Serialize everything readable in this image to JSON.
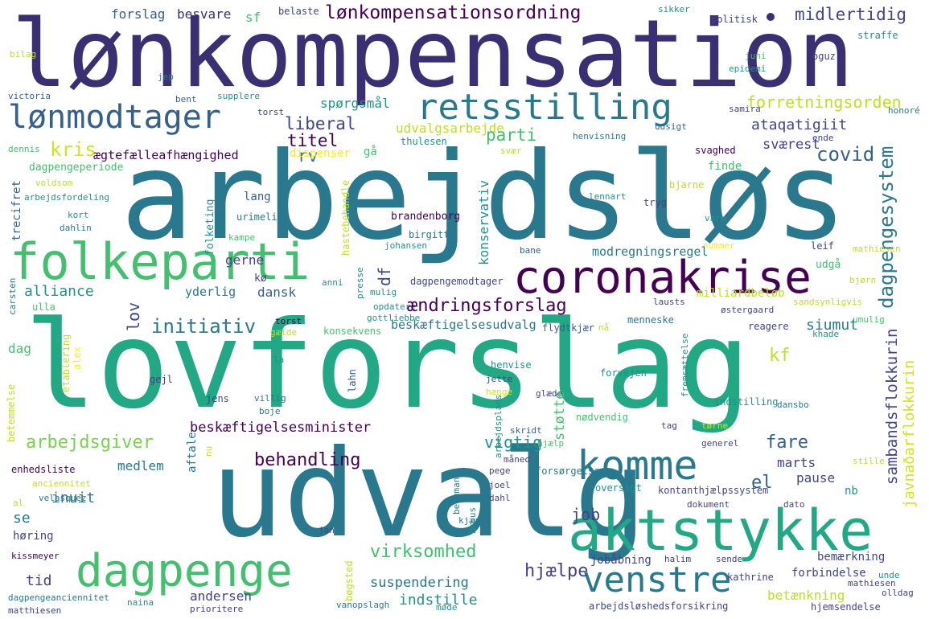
{
  "palette": {
    "dark_purple": "#440154",
    "indigo": "#3b2f73",
    "slate": "#414487",
    "blue": "#355f8d",
    "teal": "#2a788e",
    "cyan": "#21918c",
    "sea": "#22a884",
    "green": "#44bf70",
    "lime": "#7ad151",
    "yellow": "#bddf26",
    "gold": "#fde725",
    "pale": "#d2e21b"
  },
  "words": {
    "lonkompensation": {
      "text": "lønkompensation",
      "color": "#3b2f73"
    },
    "arbejdslos": {
      "text": "arbejdsløs",
      "color": "#2a788e"
    },
    "lovforslag": {
      "text": "lovforslag",
      "color": "#22a884"
    },
    "udvalg": {
      "text": "udvalg",
      "color": "#2a788e"
    },
    "aktstykke": {
      "text": "aktstykke",
      "color": "#22a884"
    },
    "folkeparti": {
      "text": "folkeparti",
      "color": "#44bf70"
    },
    "coronakrise": {
      "text": "coronakrise",
      "color": "#440154"
    },
    "retsstilling": {
      "text": "retsstilling",
      "color": "#2a788e"
    },
    "lonmodtager": {
      "text": "lønmodtager",
      "color": "#355f8d"
    },
    "dagpenge": {
      "text": "dagpenge",
      "color": "#44bf70"
    },
    "komme": {
      "text": "komme",
      "color": "#2a788e"
    },
    "venstre": {
      "text": "venstre",
      "color": "#2a788e"
    },
    "lonkompensationsordning": {
      "text": "lønkompensationsordning",
      "color": "#440154"
    },
    "midlertidig": {
      "text": "midlertidig",
      "color": "#414487"
    },
    "forretningsorden": {
      "text": "forretningsorden",
      "color": "#bddf26"
    },
    "ataqatigiit": {
      "text": "ataqatigiit",
      "color": "#414487"
    },
    "covid": {
      "text": "covid",
      "color": "#355f8d"
    },
    "dagpengesystem": {
      "text": "dagpengesystem",
      "color": "#2a788e"
    },
    "liberal": {
      "text": "liberal",
      "color": "#414487"
    },
    "udvalgsarbejde": {
      "text": "udvalgsarbejde",
      "color": "#bddf26"
    },
    "parti": {
      "text": "parti",
      "color": "#44bf70"
    },
    "kris": {
      "text": "kris",
      "color": "#d2e21b"
    },
    "titel": {
      "text": "titel",
      "color": "#440154"
    },
    "rv": {
      "text": "rv",
      "color": "#2a788e"
    },
    "svaerest": {
      "text": "sværest",
      "color": "#414487"
    },
    "aegtefaelle": {
      "text": "ægtefælleafhængighed",
      "color": "#440154"
    },
    "dispenser": {
      "text": "dispenser",
      "color": "#fde725"
    },
    "ga": {
      "text": "gå",
      "color": "#44bf70"
    },
    "thulesen": {
      "text": "thulesen",
      "color": "#21918c"
    },
    "svaer": {
      "text": "svær",
      "color": "#bddf26"
    },
    "svaghed": {
      "text": "svaghed",
      "color": "#440154"
    },
    "ende": {
      "text": "ende",
      "color": "#414487"
    },
    "spoergsmaal": {
      "text": "spørgsmål",
      "color": "#21918c"
    },
    "forslag": {
      "text": "forslag",
      "color": "#355f8d"
    },
    "besvare": {
      "text": "besvare",
      "color": "#3b2f73"
    },
    "sf": {
      "text": "sf",
      "color": "#44bf70"
    },
    "belaste": {
      "text": "belaste",
      "color": "#414487"
    },
    "sikker": {
      "text": "sikker",
      "color": "#21918c"
    },
    "politisk": {
      "text": "politisk",
      "color": "#414487"
    },
    "oguz": {
      "text": "oguz",
      "color": "#414487"
    },
    "straffe": {
      "text": "straffe",
      "color": "#21918c"
    },
    "bilag": {
      "text": "bilag",
      "color": "#bddf26"
    },
    "juni": {
      "text": "juni",
      "color": "#44bf70"
    },
    "jep": {
      "text": "jep",
      "color": "#2a788e"
    },
    "epidemi": {
      "text": "epidemi",
      "color": "#21918c"
    },
    "victoria": {
      "text": "victoria",
      "color": "#355f8d"
    },
    "bent": {
      "text": "bent",
      "color": "#355f8d"
    },
    "supplere": {
      "text": "supplere",
      "color": "#21918c"
    },
    "samira": {
      "text": "samira",
      "color": "#414487"
    },
    "honore": {
      "text": "honoré",
      "color": "#2a788e"
    },
    "torst": {
      "text": "torst",
      "color": "#414487"
    },
    "udsigt": {
      "text": "udsigt",
      "color": "#355f8d"
    },
    "henvisning": {
      "text": "henvisning",
      "color": "#2a788e"
    },
    "dennis": {
      "text": "dennis",
      "color": "#44bf70"
    },
    "dagpengeperiode": {
      "text": "dagpengeperiode",
      "color": "#44bf70"
    },
    "voldsom": {
      "text": "voldsom",
      "color": "#bddf26"
    },
    "arbejdsfordeling": {
      "text": "arbejdsfordeling",
      "color": "#21918c"
    },
    "kort": {
      "text": "kort",
      "color": "#21918c"
    },
    "dahlin": {
      "text": "dahlin",
      "color": "#2a788e"
    },
    "trecifret": {
      "text": "trecifret",
      "color": "#355f8d"
    },
    "folketing": {
      "text": "folketing",
      "color": "#21918c"
    },
    "lang": {
      "text": "lang",
      "color": "#355f8d"
    },
    "urimelig": {
      "text": "urimelig",
      "color": "#2a788e"
    },
    "brandenborg": {
      "text": "brandenborg",
      "color": "#440154"
    },
    "birgitte": {
      "text": "birgitte",
      "color": "#2a788e"
    },
    "kampe": {
      "text": "kampe",
      "color": "#44bf70"
    },
    "hastebehandle": {
      "text": "hastebehandle",
      "color": "#bddf26"
    },
    "lennart": {
      "text": "lennart",
      "color": "#21918c"
    },
    "tryg": {
      "text": "tryg",
      "color": "#414487"
    },
    "varm": {
      "text": "varm",
      "color": "#21918c"
    },
    "bjarne": {
      "text": "bjarne",
      "color": "#bddf26"
    },
    "finde": {
      "text": "finde",
      "color": "#44bf70"
    },
    "konservativ": {
      "text": "konservativ",
      "color": "#21918c"
    },
    "nummer": {
      "text": "nummer",
      "color": "#fde725"
    },
    "leif": {
      "text": "leif",
      "color": "#414487"
    },
    "mathiesen_top": {
      "text": "mathiesen",
      "color": "#bddf26"
    },
    "johansen": {
      "text": "johansen",
      "color": "#21918c"
    },
    "bane": {
      "text": "bane",
      "color": "#355f8d"
    },
    "modregningsregel": {
      "text": "modregningsregel",
      "color": "#2a788e"
    },
    "udga": {
      "text": "udgå",
      "color": "#44bf70"
    },
    "bjorn": {
      "text": "bjørn",
      "color": "#bddf26"
    },
    "gerne": {
      "text": "gerne",
      "color": "#414487"
    },
    "df": {
      "text": "df",
      "color": "#414487"
    },
    "alliance": {
      "text": "alliance",
      "color": "#21918c"
    },
    "yderlig": {
      "text": "yderlig",
      "color": "#2a788e"
    },
    "ko": {
      "text": "kø",
      "color": "#414487"
    },
    "dansk": {
      "text": "dansk",
      "color": "#355f8d"
    },
    "anni": {
      "text": "anni",
      "color": "#21918c"
    },
    "presse": {
      "text": "presse",
      "color": "#21918c"
    },
    "mulig": {
      "text": "mulig",
      "color": "#21918c"
    },
    "dagpengemodtager": {
      "text": "dagpengemodtager",
      "color": "#414487"
    },
    "opdatere": {
      "text": "opdatere",
      "color": "#21918c"
    },
    "lausts": {
      "text": "lausts",
      "color": "#414487"
    },
    "milliardbelob": {
      "text": "milliardbeløb",
      "color": "#bddf26"
    },
    "sandsynligvis": {
      "text": "sandsynligvis",
      "color": "#bddf26"
    },
    "ostergaard": {
      "text": "østergaard",
      "color": "#414487"
    },
    "carsten": {
      "text": "carsten",
      "color": "#2a788e"
    },
    "ulla": {
      "text": "ulla",
      "color": "#44bf70"
    },
    "lov": {
      "text": "lov",
      "color": "#414487"
    },
    "aendringsforslag": {
      "text": "ændringsforslag",
      "color": "#440154"
    },
    "initiativ": {
      "text": "initiativ",
      "color": "#2a788e"
    },
    "torst2": {
      "text": "torst",
      "color": "#440154"
    },
    "gottliebbe": {
      "text": "gottliebbe",
      "color": "#21918c"
    },
    "galde": {
      "text": "gælde",
      "color": "#bddf26"
    },
    "konsekvens": {
      "text": "konsekvens",
      "color": "#44bf70"
    },
    "beskaeftigelsesudvalg": {
      "text": "beskæftigelsesudvalg",
      "color": "#2a788e"
    },
    "flydtkjaer": {
      "text": "flydtkjær",
      "color": "#355f8d"
    },
    "na": {
      "text": "nå",
      "color": "#bddf26"
    },
    "reagere": {
      "text": "reagere",
      "color": "#414487"
    },
    "siumut": {
      "text": "siumut",
      "color": "#2a788e"
    },
    "sambandsflokkurin": {
      "text": "sambandsflokkurin",
      "color": "#414487"
    },
    "javnadarflokkurin": {
      "text": "javnaðarflokkurin",
      "color": "#d2e21b"
    },
    "umulig": {
      "text": "umulig",
      "color": "#44bf70"
    },
    "khade": {
      "text": "khade",
      "color": "#21918c"
    },
    "alex": {
      "text": "alex",
      "color": "#fde725"
    },
    "etablering": {
      "text": "etablering",
      "color": "#bddf26"
    },
    "dag": {
      "text": "dag",
      "color": "#44bf70"
    },
    "gejl": {
      "text": "gejl",
      "color": "#414487"
    },
    "la": {
      "text": "la",
      "color": "#21918c"
    },
    "lahn": {
      "text": "lahn",
      "color": "#355f8d"
    },
    "henvise": {
      "text": "henvise",
      "color": "#21918c"
    },
    "jette": {
      "text": "jette",
      "color": "#414487"
    },
    "haenge": {
      "text": "hænge",
      "color": "#d2e21b"
    },
    "glaede": {
      "text": "glæde",
      "color": "#414487"
    },
    "forvejen": {
      "text": "forvejen",
      "color": "#21918c"
    },
    "menneske": {
      "text": "menneske",
      "color": "#2a788e"
    },
    "fremsaettelse": {
      "text": "fremsættelse",
      "color": "#21918c"
    },
    "kf": {
      "text": "kf",
      "color": "#bddf26"
    },
    "betemmelse": {
      "text": "betemmelse",
      "color": "#bddf26"
    },
    "jens": {
      "text": "jens",
      "color": "#414487"
    },
    "villig": {
      "text": "villig",
      "color": "#2a788e"
    },
    "boje": {
      "text": "boje",
      "color": "#2a788e"
    },
    "arbejdsplads": {
      "text": "arbejdsplads",
      "color": "#21918c"
    },
    "indstilling": {
      "text": "indstilling",
      "color": "#21918c"
    },
    "dansbo": {
      "text": "dansbo",
      "color": "#2a788e"
    },
    "beskaeftigelsesminister": {
      "text": "beskæftigelsesminister",
      "color": "#440154"
    },
    "stotte": {
      "text": "støtte",
      "color": "#44bf70"
    },
    "nodvendig": {
      "text": "nødvendig",
      "color": "#44bf70"
    },
    "tag": {
      "text": "tag",
      "color": "#414487"
    },
    "torne": {
      "text": "tørne",
      "color": "#d2e21b"
    },
    "skridt": {
      "text": "skridt",
      "color": "#355f8d"
    },
    "arbejdsgiver": {
      "text": "arbejdsgiver",
      "color": "#7ad151"
    },
    "aftale": {
      "text": "aftale",
      "color": "#2a788e"
    },
    "hjaelp_small": {
      "text": "hjælp",
      "color": "#44bf70"
    },
    "vigtig": {
      "text": "vigtig",
      "color": "#21918c"
    },
    "generel": {
      "text": "generel",
      "color": "#414487"
    },
    "fare": {
      "text": "fare",
      "color": "#355f8d"
    },
    "enhedsliste": {
      "text": "enhedsliste",
      "color": "#440154"
    },
    "medlem": {
      "text": "medlem",
      "color": "#2a788e"
    },
    "behandling": {
      "text": "behandling",
      "color": "#440154"
    },
    "maned": {
      "text": "måned",
      "color": "#414487"
    },
    "pege": {
      "text": "pege",
      "color": "#414487"
    },
    "forsorgelse": {
      "text": "forsørgelse",
      "color": "#2a788e"
    },
    "marts": {
      "text": "marts",
      "color": "#414487"
    },
    "stille": {
      "text": "stille",
      "color": "#bddf26"
    },
    "nu": {
      "text": "nu",
      "color": "#bddf26"
    },
    "anciennitet": {
      "text": "anciennitet",
      "color": "#bddf26"
    },
    "joel": {
      "text": "joel",
      "color": "#414487"
    },
    "el": {
      "text": "el",
      "color": "#355f8d"
    },
    "pause": {
      "text": "pause",
      "color": "#414487"
    },
    "velasquez": {
      "text": "velasquez",
      "color": "#2a788e"
    },
    "al": {
      "text": "al",
      "color": "#bddf26"
    },
    "dahl": {
      "text": "dahl",
      "color": "#414487"
    },
    "bergman": {
      "text": "bergman",
      "color": "#2a788e"
    },
    "bruus": {
      "text": "bruus",
      "color": "#21918c"
    },
    "inuit": {
      "text": "inuit",
      "color": "#2a788e"
    },
    "oversigt": {
      "text": "oversigt",
      "color": "#21918c"
    },
    "kontanthjaelp": {
      "text": "kontanthjælpssystem",
      "color": "#414487"
    },
    "se": {
      "text": "se",
      "color": "#2a788e"
    },
    "job": {
      "text": "job",
      "color": "#414487"
    },
    "dokument": {
      "text": "dokument",
      "color": "#414487"
    },
    "dato": {
      "text": "dato",
      "color": "#414487"
    },
    "nb": {
      "text": "nb",
      "color": "#21918c"
    },
    "horing": {
      "text": "høring",
      "color": "#414487"
    },
    "jan": {
      "text": "jan",
      "color": "#414487"
    },
    "kjaer": {
      "text": "kjær",
      "color": "#2a788e"
    },
    "kissmeyer": {
      "text": "kissmeyer",
      "color": "#440154"
    },
    "virksomhed": {
      "text": "virksomhed",
      "color": "#44bf70"
    },
    "hjaelpe": {
      "text": "hjælpe",
      "color": "#414487"
    },
    "jobabning": {
      "text": "jobåbning",
      "color": "#414487"
    },
    "bemaerkning": {
      "text": "bemærkning",
      "color": "#414487"
    },
    "halim": {
      "text": "halim",
      "color": "#414487"
    },
    "sende": {
      "text": "sende",
      "color": "#414487"
    },
    "tid": {
      "text": "tid",
      "color": "#414487"
    },
    "bogsted": {
      "text": "bøgsted",
      "color": "#bddf26"
    },
    "suspendering": {
      "text": "suspendering",
      "color": "#2a788e"
    },
    "forbindelse": {
      "text": "forbindelse",
      "color": "#414487"
    },
    "kathrine": {
      "text": "kathrine",
      "color": "#414487"
    },
    "unde": {
      "text": "unde",
      "color": "#21918c"
    },
    "betaenkning": {
      "text": "betænkning",
      "color": "#bddf26"
    },
    "andersen": {
      "text": "andersen",
      "color": "#414487"
    },
    "dagpengeanciennitet": {
      "text": "dagpengeanciennitet",
      "color": "#2a788e"
    },
    "naina": {
      "text": "naina",
      "color": "#21918c"
    },
    "prioritere": {
      "text": "prioritere",
      "color": "#414487"
    },
    "vanopslagh": {
      "text": "vanopslagh",
      "color": "#2a788e"
    },
    "mode": {
      "text": "møde",
      "color": "#21918c"
    },
    "indstille": {
      "text": "indstille",
      "color": "#21918c"
    },
    "arbejdsloeshedsforsikring": {
      "text": "arbejdsløshedsforsikring",
      "color": "#414487"
    },
    "hjemsendelse": {
      "text": "hjemsendelse",
      "color": "#414487"
    },
    "olldag": {
      "text": "olldag",
      "color": "#414487"
    },
    "matthiesen": {
      "text": "matthiesen",
      "color": "#414487"
    },
    "mathiesen2": {
      "text": "mathiesen",
      "color": "#414487"
    }
  }
}
